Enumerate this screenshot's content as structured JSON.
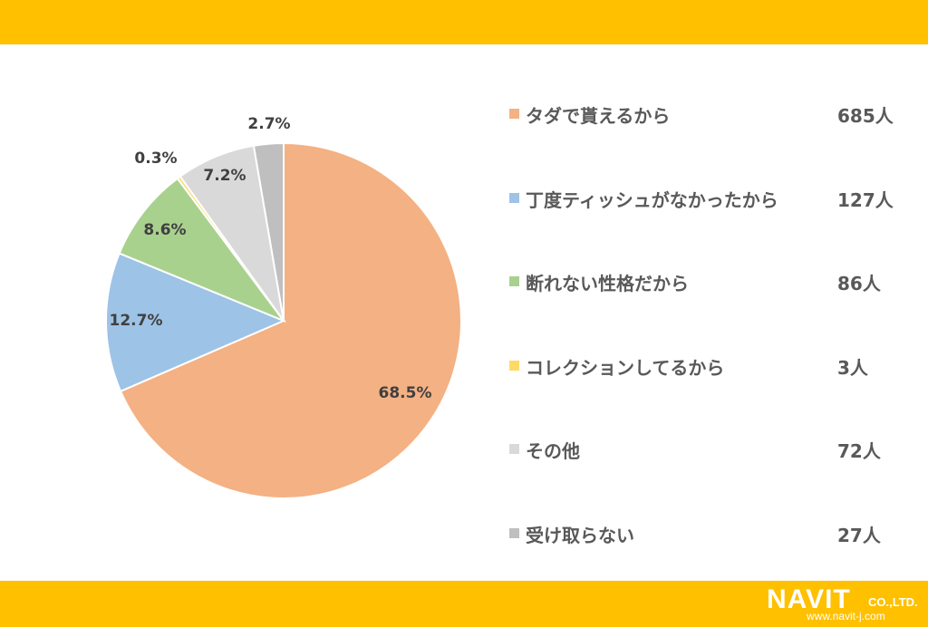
{
  "chart_data": {
    "type": "pie",
    "slices": [
      {
        "label": "タダで貰えるから",
        "count": "685人",
        "value": 68.5,
        "value_label": "68.5%",
        "color": "#f4b183"
      },
      {
        "label": "丁度ティッシュがなかったから",
        "count": "127人",
        "value": 12.7,
        "value_label": "12.7%",
        "color": "#9dc3e6"
      },
      {
        "label": "断れない性格だから",
        "count": "86人",
        "value": 8.6,
        "value_label": "8.6%",
        "color": "#a9d18e"
      },
      {
        "label": "コレクションしてるから",
        "count": "3人",
        "value": 0.3,
        "value_label": "0.3%",
        "color": "#ffd966"
      },
      {
        "label": "その他",
        "count": "72人",
        "value": 7.2,
        "value_label": "7.2%",
        "color": "#d9d9d9"
      },
      {
        "label": "受け取らない",
        "count": "27人",
        "value": 2.7,
        "value_label": "2.7%",
        "color": "#bfbfbf"
      }
    ],
    "start_angle": "12 o'clock",
    "direction": "clockwise",
    "legend_position": "right"
  },
  "colors": {
    "band": "#ffc000",
    "text": "#595959",
    "label": "#404040"
  },
  "logo": {
    "word": "NAVIT",
    "suffix": "CO.,LTD.",
    "url": "www.navit-j.com"
  }
}
